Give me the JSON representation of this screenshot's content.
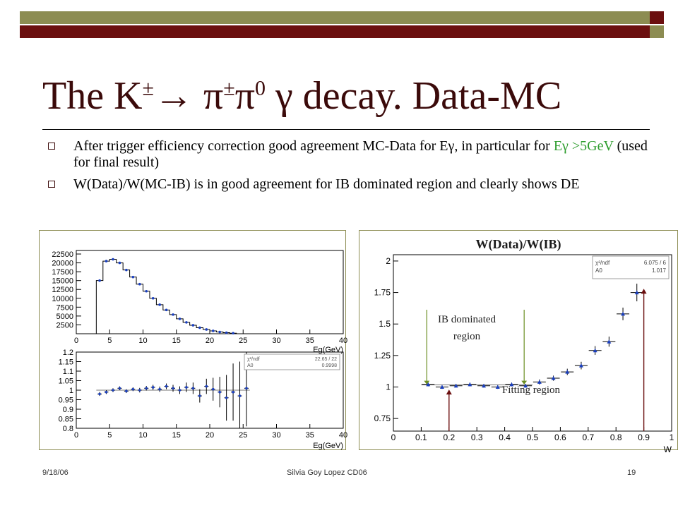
{
  "slide": {
    "title_main": "The K",
    "title_sup1": "±",
    "title_arrow": "→",
    "title_pi1": " π",
    "title_sup2": "±",
    "title_pi2": "π",
    "title_sup3": "0",
    "title_rest": " γ decay. Data-MC",
    "bullet1_a": "After trigger efficiency correction good agreement MC-Data for Eγ, in particular for ",
    "bullet1_green": "Eγ >5GeV",
    "bullet1_b": " (used for final result)",
    "bullet2": "W(Data)/W(MC-IB) is in good agreement for IB dominated region and clearly shows DE",
    "footer_date": "9/18/06",
    "footer_author": "Silvia Goy Lopez CD06",
    "footer_page": "19",
    "colors": {
      "olive": "#8c8c52",
      "darkred": "#6b0f0f",
      "green": "#2e9d2e",
      "blue": "#1a3fbf"
    }
  },
  "chart_data": [
    {
      "type": "bar",
      "xlabel": "Eg(GeV)",
      "xlim": [
        0,
        40
      ],
      "ylim": [
        0,
        23500
      ],
      "x_ticks": [
        "0",
        "5",
        "10",
        "15",
        "20",
        "25",
        "30",
        "35",
        "40"
      ],
      "y_ticks": [
        "2500",
        "5000",
        "7500",
        "10000",
        "12500",
        "15000",
        "17500",
        "20000",
        "22500"
      ],
      "bin_width": 1,
      "x": [
        3,
        4,
        5,
        6,
        7,
        8,
        9,
        10,
        11,
        12,
        13,
        14,
        15,
        16,
        17,
        18,
        19,
        20,
        21,
        22,
        23
      ],
      "values": [
        15000,
        20500,
        21000,
        20000,
        18000,
        16000,
        14000,
        12000,
        10000,
        8200,
        6700,
        5400,
        4200,
        3200,
        2400,
        1700,
        1200,
        800,
        500,
        300,
        150
      ]
    },
    {
      "type": "scatter",
      "xlabel": "Eg(GeV)",
      "xlim": [
        0,
        40
      ],
      "ylim": [
        0.8,
        1.2
      ],
      "x_ticks": [
        "0",
        "5",
        "10",
        "15",
        "20",
        "25",
        "30",
        "35",
        "40"
      ],
      "y_ticks": [
        "0.8",
        "0.85",
        "0.9",
        "0.95",
        "1",
        "1.05",
        "1.1",
        "1.15",
        "1.2"
      ],
      "fit_value": 1.0,
      "stats": [
        [
          "χ²/ndf",
          "22.65 / 22"
        ],
        [
          "A0",
          "0.9998"
        ]
      ],
      "x": [
        3.5,
        4.5,
        5.5,
        6.5,
        7.5,
        8.5,
        9.5,
        10.5,
        11.5,
        12.5,
        13.5,
        14.5,
        15.5,
        16.5,
        17.5,
        18.5,
        19.5,
        20.5,
        21.5,
        22.5,
        23.5,
        24.5,
        25.5
      ],
      "y": [
        0.98,
        0.99,
        1.0,
        1.01,
        0.995,
        1.005,
        1.0,
        1.01,
        1.015,
        1.005,
        1.02,
        1.01,
        1.0,
        1.015,
        1.01,
        0.97,
        1.02,
        1.005,
        0.99,
        0.96,
        0.99,
        0.97,
        1.01
      ],
      "err": [
        0.01,
        0.01,
        0.01,
        0.01,
        0.01,
        0.01,
        0.012,
        0.012,
        0.013,
        0.014,
        0.015,
        0.018,
        0.02,
        0.025,
        0.03,
        0.035,
        0.04,
        0.06,
        0.08,
        0.12,
        0.15,
        0.18,
        0.2
      ]
    },
    {
      "type": "scatter",
      "title": "W(Data)/W(IB)",
      "xlabel": "W",
      "xlim": [
        0,
        1
      ],
      "ylim": [
        0.65,
        2.05
      ],
      "x_ticks": [
        "0",
        "0.1",
        "0.2",
        "0.3",
        "0.4",
        "0.5",
        "0.6",
        "0.7",
        "0.8",
        "0.9",
        "1"
      ],
      "y_ticks": [
        "0.75",
        "1",
        "1.25",
        "1.5",
        "1.75",
        "2"
      ],
      "stats": [
        [
          "χ²/ndf",
          "6.075 / 6"
        ],
        [
          "A0",
          "1.017"
        ]
      ],
      "annotations": [
        "IB dominated region",
        "Fitting region"
      ],
      "ib_region": [
        0.12,
        0.47
      ],
      "fit_region": [
        0.2,
        0.9
      ],
      "x": [
        0.125,
        0.175,
        0.225,
        0.275,
        0.325,
        0.375,
        0.425,
        0.475,
        0.525,
        0.575,
        0.625,
        0.675,
        0.725,
        0.775,
        0.825,
        0.875
      ],
      "y": [
        1.02,
        1.0,
        1.01,
        1.02,
        1.01,
        1.0,
        1.02,
        1.01,
        1.04,
        1.07,
        1.12,
        1.17,
        1.29,
        1.36,
        1.58,
        1.75
      ],
      "err": [
        0.015,
        0.015,
        0.015,
        0.015,
        0.015,
        0.015,
        0.015,
        0.015,
        0.02,
        0.02,
        0.025,
        0.03,
        0.035,
        0.04,
        0.05,
        0.07
      ]
    }
  ]
}
